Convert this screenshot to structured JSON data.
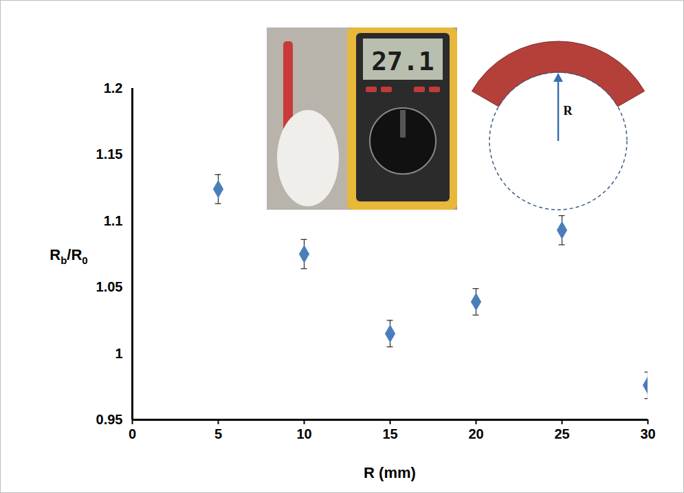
{
  "chart_data": {
    "type": "scatter",
    "xlabel": "R (mm)",
    "ylabel": "Rb/R0",
    "x": [
      5,
      10,
      15,
      20,
      25,
      30
    ],
    "values": [
      1.124,
      1.075,
      1.015,
      1.039,
      1.093,
      0.976
    ],
    "errors": [
      0.011,
      0.011,
      0.01,
      0.01,
      0.011,
      0.01
    ],
    "color": "#4a7ebb",
    "marker": "diamond",
    "xlim": [
      0,
      30
    ],
    "xticks": [
      0,
      5,
      10,
      15,
      20,
      25,
      30
    ],
    "ylim": [
      0.95,
      1.2
    ],
    "yticks": [
      0.95,
      1,
      1.05,
      1.1,
      1.15,
      1.2
    ],
    "grid": false,
    "annotations": [
      {
        "text": "27.1"
      },
      {
        "text": "R"
      }
    ]
  }
}
